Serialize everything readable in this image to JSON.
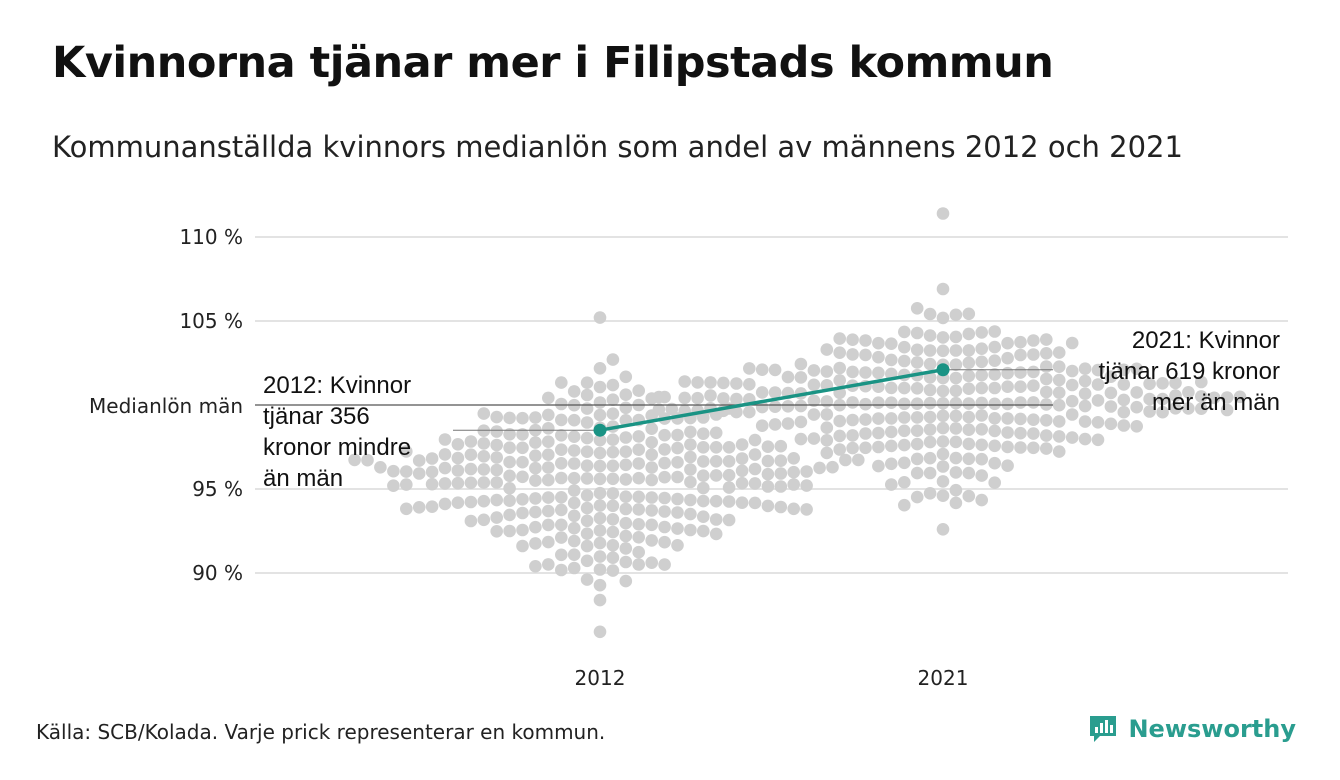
{
  "header": {
    "title": "Kvinnorna tjänar mer i Filipstads kommun",
    "subtitle": "Kommunanställda kvinnors medianlön som andel av männens 2012 och 2021"
  },
  "footer": {
    "source": "Källa: SCB/Kolada. Varje prick representerar en kommun.",
    "brand": "Newsworthy"
  },
  "colors": {
    "highlight": "#1a9384",
    "dots": "#cfcfcf",
    "grid": "#e3e3e3",
    "reference_line": "#555555"
  },
  "icons": {
    "brand_logo": "bar-chart-speech-bubble-icon"
  },
  "chart_data": {
    "type": "scatter",
    "subtype": "beeswarm-with-highlight",
    "title": "Kvinnorna tjänar mer i Filipstads kommun",
    "ylabel": "",
    "xlabel": "",
    "ylim": [
      86,
      111.5
    ],
    "y_ticks": [
      {
        "value": 90,
        "label": "90 %"
      },
      {
        "value": 95,
        "label": "95 %"
      },
      {
        "value": 105,
        "label": "105 %"
      },
      {
        "value": 110,
        "label": "110 %"
      }
    ],
    "reference_line": {
      "value": 100,
      "label": "Medianlön män"
    },
    "categories": [
      "2012",
      "2021"
    ],
    "distributions": [
      {
        "category": "2012",
        "min": 86.5,
        "max": 105.2,
        "median": 95.6
      },
      {
        "category": "2021",
        "min": 92.6,
        "max": 111.4,
        "median": 100.1
      }
    ],
    "highlight": {
      "name": "Filipstad",
      "points": [
        {
          "category": "2012",
          "value": 98.5
        },
        {
          "category": "2021",
          "value": 102.1
        }
      ]
    },
    "annotations": [
      {
        "category": "2012",
        "lines": [
          "2012: Kvinnor",
          "tjänar 356",
          "kronor mindre",
          "än män"
        ]
      },
      {
        "category": "2021",
        "lines": [
          "2021: Kvinnor",
          "tjänar 619 kronor",
          "mer än män"
        ]
      }
    ],
    "grid": true,
    "legend": "none"
  }
}
